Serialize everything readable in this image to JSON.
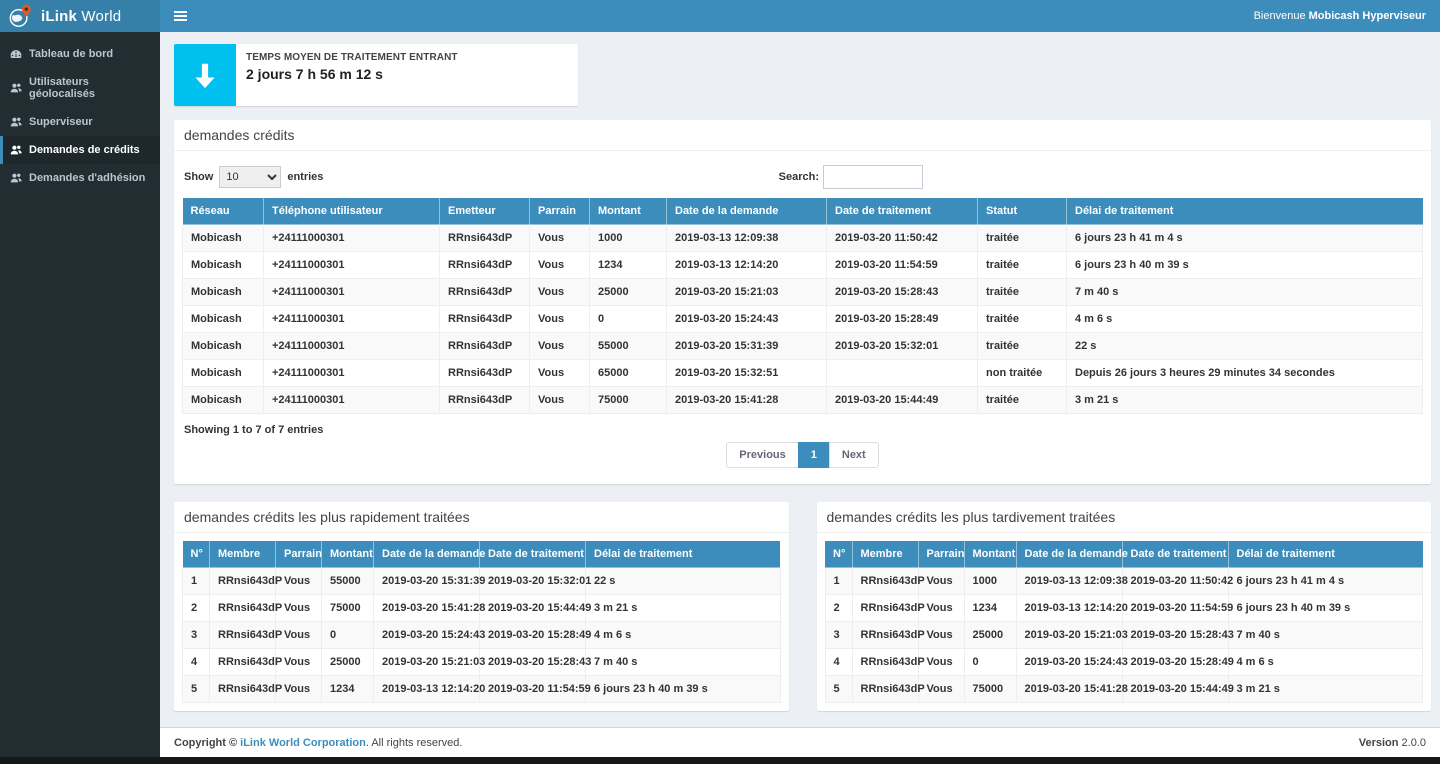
{
  "brand": {
    "bold": "iLink",
    "regular": " World"
  },
  "topbar": {
    "welcome_prefix": "Bienvenue ",
    "welcome_user": "Mobicash Hyperviseur"
  },
  "sidebar": {
    "items": [
      {
        "label": "Tableau de bord",
        "icon": "dashboard-icon",
        "active": false
      },
      {
        "label": "Utilisateurs géolocalisés",
        "icon": "users-icon",
        "active": false
      },
      {
        "label": "Superviseur",
        "icon": "users-icon",
        "active": false
      },
      {
        "label": "Demandes de crédits",
        "icon": "users-icon",
        "active": true
      },
      {
        "label": "Demandes d'adhésion",
        "icon": "users-icon",
        "active": false
      }
    ]
  },
  "stat_card": {
    "label": "TEMPS MOYEN DE TRAITEMENT ENTRANT",
    "value": "2 jours 7 h 56 m 12 s",
    "icon": "down-arrow-icon",
    "icon_color": "#00c0ef"
  },
  "credits_panel": {
    "title": "demandes crédits",
    "show_label": "Show",
    "entries_label": "entries",
    "page_length": "10",
    "search_label": "Search:",
    "search_value": "",
    "columns": [
      "Réseau",
      "Téléphone utilisateur",
      "Emetteur",
      "Parrain",
      "Montant",
      "Date de la demande",
      "Date de traitement",
      "Statut",
      "Délai de traitement"
    ],
    "rows": [
      [
        "Mobicash",
        "+24111000301",
        "RRnsi643dP",
        "Vous",
        "1000",
        "2019-03-13 12:09:38",
        "2019-03-20 11:50:42",
        "traitée",
        "6 jours 23 h 41 m 4 s"
      ],
      [
        "Mobicash",
        "+24111000301",
        "RRnsi643dP",
        "Vous",
        "1234",
        "2019-03-13 12:14:20",
        "2019-03-20 11:54:59",
        "traitée",
        "6 jours 23 h 40 m 39 s"
      ],
      [
        "Mobicash",
        "+24111000301",
        "RRnsi643dP",
        "Vous",
        "25000",
        "2019-03-20 15:21:03",
        "2019-03-20 15:28:43",
        "traitée",
        "7 m 40 s"
      ],
      [
        "Mobicash",
        "+24111000301",
        "RRnsi643dP",
        "Vous",
        "0",
        "2019-03-20 15:24:43",
        "2019-03-20 15:28:49",
        "traitée",
        "4 m 6 s"
      ],
      [
        "Mobicash",
        "+24111000301",
        "RRnsi643dP",
        "Vous",
        "55000",
        "2019-03-20 15:31:39",
        "2019-03-20 15:32:01",
        "traitée",
        "22 s"
      ],
      [
        "Mobicash",
        "+24111000301",
        "RRnsi643dP",
        "Vous",
        "65000",
        "2019-03-20 15:32:51",
        "",
        "non traitée",
        "Depuis 26 jours 3 heures 29 minutes 34 secondes"
      ],
      [
        "Mobicash",
        "+24111000301",
        "RRnsi643dP",
        "Vous",
        "75000",
        "2019-03-20 15:41:28",
        "2019-03-20 15:44:49",
        "traitée",
        "3 m 21 s"
      ]
    ],
    "info": "Showing 1 to 7 of 7 entries",
    "pagination": {
      "previous": "Previous",
      "page": "1",
      "next": "Next"
    }
  },
  "fastest_panel": {
    "title": "demandes crédits les plus rapidement traitées",
    "columns": [
      "N°",
      "Membre",
      "Parrain",
      "Montant",
      "Date de la demande",
      "Date de traitement",
      "Délai de traitement"
    ],
    "rows": [
      [
        "1",
        "RRnsi643dP",
        "Vous",
        "55000",
        "2019-03-20 15:31:39",
        "2019-03-20 15:32:01",
        "22 s"
      ],
      [
        "2",
        "RRnsi643dP",
        "Vous",
        "75000",
        "2019-03-20 15:41:28",
        "2019-03-20 15:44:49",
        "3 m 21 s"
      ],
      [
        "3",
        "RRnsi643dP",
        "Vous",
        "0",
        "2019-03-20 15:24:43",
        "2019-03-20 15:28:49",
        "4 m 6 s"
      ],
      [
        "4",
        "RRnsi643dP",
        "Vous",
        "25000",
        "2019-03-20 15:21:03",
        "2019-03-20 15:28:43",
        "7 m 40 s"
      ],
      [
        "5",
        "RRnsi643dP",
        "Vous",
        "1234",
        "2019-03-13 12:14:20",
        "2019-03-20 11:54:59",
        "6 jours 23 h 40 m 39 s"
      ]
    ]
  },
  "latest_panel": {
    "title": "demandes crédits les plus tardivement traitées",
    "columns": [
      "N°",
      "Membre",
      "Parrain",
      "Montant",
      "Date de la demande",
      "Date de traitement",
      "Délai de traitement"
    ],
    "rows": [
      [
        "1",
        "RRnsi643dP",
        "Vous",
        "1000",
        "2019-03-13 12:09:38",
        "2019-03-20 11:50:42",
        "6 jours 23 h 41 m 4 s"
      ],
      [
        "2",
        "RRnsi643dP",
        "Vous",
        "1234",
        "2019-03-13 12:14:20",
        "2019-03-20 11:54:59",
        "6 jours 23 h 40 m 39 s"
      ],
      [
        "3",
        "RRnsi643dP",
        "Vous",
        "25000",
        "2019-03-20 15:21:03",
        "2019-03-20 15:28:43",
        "7 m 40 s"
      ],
      [
        "4",
        "RRnsi643dP",
        "Vous",
        "0",
        "2019-03-20 15:24:43",
        "2019-03-20 15:28:49",
        "4 m 6 s"
      ],
      [
        "5",
        "RRnsi643dP",
        "Vous",
        "75000",
        "2019-03-20 15:41:28",
        "2019-03-20 15:44:49",
        "3 m 21 s"
      ]
    ]
  },
  "footer": {
    "copyright_prefix": "Copyright © ",
    "company": "iLink World Corporation",
    "copyright_suffix": ". All rights reserved.",
    "version_label": "Version ",
    "version": "2.0.0"
  },
  "colors": {
    "navbar": "#3c8dbc",
    "logo_bg": "#367fa9",
    "sidebar_bg": "#222d32",
    "sidebar_active_bg": "#1e282c",
    "stat_icon_bg": "#00c0ef",
    "table_header": "#3c8dbc",
    "content_bg": "#ecf0f5",
    "pin_orange": "#e25822"
  }
}
